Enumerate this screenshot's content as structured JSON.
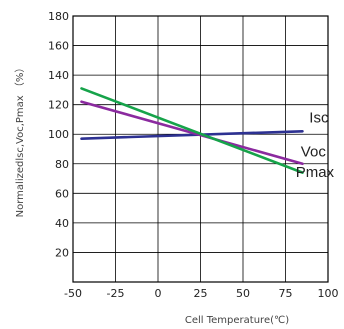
{
  "chart_data": {
    "type": "line",
    "title": "",
    "xlabel": "Cell Temperature(℃)",
    "ylabel": "Normalizedlsc,Voc,Pmax （%）",
    "xlim": [
      -50,
      100
    ],
    "ylim": [
      0,
      180
    ],
    "x_ticks": [
      -50,
      -25,
      0,
      25,
      50,
      75,
      100
    ],
    "x_tick_labels": [
      "-50",
      "-25",
      "0",
      "25",
      "50",
      "75",
      "100"
    ],
    "y_ticks": [
      20,
      40,
      60,
      80,
      100,
      120,
      140,
      160,
      180
    ],
    "grid": true,
    "series": [
      {
        "name": "Isc",
        "color": "#2d3192",
        "x": [
          -45,
          85
        ],
        "y": [
          97,
          102
        ]
      },
      {
        "name": "Voc",
        "color": "#8b2a9f",
        "x": [
          -45,
          85
        ],
        "y": [
          122,
          80
        ]
      },
      {
        "name": "Pmax",
        "color": "#16a34a",
        "x": [
          -45,
          85
        ],
        "y": [
          131,
          74
        ]
      }
    ],
    "labels": [
      {
        "text": "Isc",
        "x": 89,
        "y": 108
      },
      {
        "text": "Voc",
        "x": 84,
        "y": 85
      },
      {
        "text": "Pmax",
        "x": 81,
        "y": 71
      }
    ]
  }
}
